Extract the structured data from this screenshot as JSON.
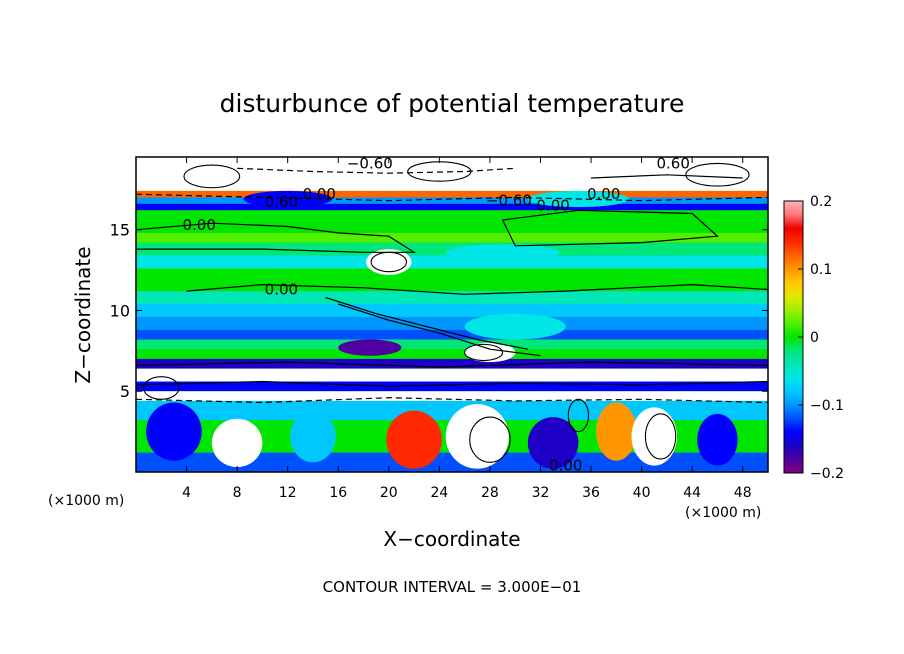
{
  "chart_data": {
    "type": "heatmap",
    "title": "disturbunce of potential temperature",
    "xlabel": "X−coordinate",
    "ylabel": "Z−coordinate",
    "x_unit": "(×1000 m)",
    "x_unit_right": "(×1000 m)",
    "footer": "CONTOUR INTERVAL = 3.000E−01",
    "xlim": [
      0,
      50
    ],
    "ylim": [
      0,
      19.5
    ],
    "x_ticks": [
      4,
      8,
      12,
      16,
      20,
      24,
      28,
      32,
      36,
      40,
      44,
      48
    ],
    "y_ticks": [
      5,
      10,
      15
    ],
    "colorbar": {
      "min": -0.2,
      "max": 0.2,
      "ticks": [
        "0.2",
        "0.1",
        "0",
        "−0.1",
        "−0.2"
      ],
      "colors": [
        "#800080",
        "#5000a0",
        "#1e00c8",
        "#0000ff",
        "#0050ff",
        "#0096ff",
        "#00c8ff",
        "#00e6e6",
        "#00e6b4",
        "#00e678",
        "#00e600",
        "#50f000",
        "#a0f000",
        "#e6e600",
        "#ffc800",
        "#ff9600",
        "#ff6400",
        "#ff2800",
        "#f00000",
        "#ff7878",
        "#ffb4b4"
      ]
    },
    "contour_labels": [
      {
        "text": "−0.60",
        "x": 18.5,
        "z": 19.1
      },
      {
        "text": "0.60",
        "x": 42.5,
        "z": 19.1
      },
      {
        "text": "0.00",
        "x": 14.5,
        "z": 17.2
      },
      {
        "text": "0.60",
        "x": 11.5,
        "z": 16.7
      },
      {
        "text": "−0.60",
        "x": 29.5,
        "z": 16.8
      },
      {
        "text": "0.00",
        "x": 33.0,
        "z": 16.5
      },
      {
        "text": "0.00",
        "x": 37.0,
        "z": 17.2
      },
      {
        "text": "0.00",
        "x": 5.0,
        "z": 15.3
      },
      {
        "text": "0.00",
        "x": 11.5,
        "z": 11.3
      },
      {
        "text": "0.00",
        "x": 34.0,
        "z": 0.4
      }
    ]
  }
}
